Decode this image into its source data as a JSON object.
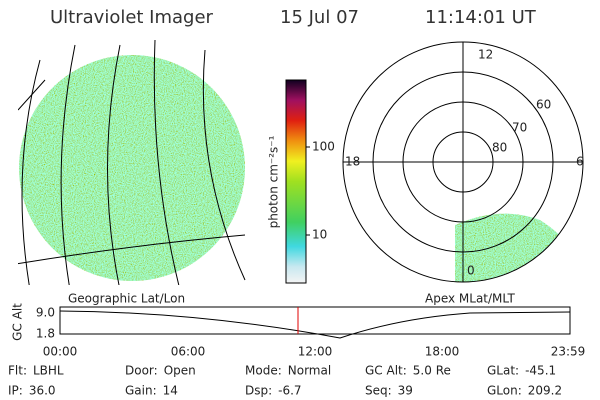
{
  "header": {
    "instrument": "Ultraviolet Imager",
    "date": "15 Jul 07",
    "time": "11:14:01 UT"
  },
  "colorbar": {
    "label": "photon cm⁻²s⁻¹",
    "ticks": [
      "100",
      "10"
    ]
  },
  "polar": {
    "mlt_labels": [
      "12",
      "18",
      "6",
      "0"
    ],
    "lat_labels": [
      "60",
      "70",
      "80"
    ]
  },
  "panels": [
    "Geographic Lat/Lon",
    "Apex MLat/MLT"
  ],
  "timeline": {
    "ylabel": "GC Alt",
    "yticks": [
      "9.0",
      "1.8"
    ],
    "xticks": [
      "00:00",
      "06:00",
      "12:00",
      "18:00",
      "23:59"
    ]
  },
  "info": [
    [
      {
        "label": "Flt:",
        "value": "LBHL"
      },
      {
        "label": "Door:",
        "value": "Open"
      },
      {
        "label": "Mode:",
        "value": "Normal"
      },
      {
        "label": "GC Alt:",
        "value": "5.0 Re"
      },
      {
        "label": "GLat:",
        "value": "-45.1"
      }
    ],
    [
      {
        "label": "IP:",
        "value": "36.0"
      },
      {
        "label": "Gain:",
        "value": "14"
      },
      {
        "label": "Dsp:",
        "value": "-6.7"
      },
      {
        "label": "Seq:",
        "value": "39"
      },
      {
        "label": "GLon:",
        "value": "209.2"
      }
    ]
  ]
}
